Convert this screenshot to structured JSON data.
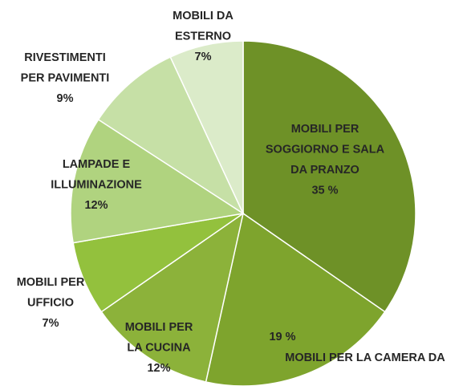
{
  "chart_data": {
    "type": "pie",
    "categories": [
      [
        "MOBILI PER",
        "SOGGIORNO E SALA",
        "DA PRANZO"
      ],
      [
        "MOBILI PER LA CAMERA DA"
      ],
      [
        "MOBILI PER",
        "LA CUCINA"
      ],
      [
        "MOBILI PER",
        "UFFICIO"
      ],
      [
        "LAMPADE E",
        "ILLUMINAZIONE"
      ],
      [
        "RIVESTIMENTI",
        "PER PAVIMENTI"
      ],
      [
        "MOBILI DA",
        "ESTERNO"
      ]
    ],
    "values": [
      35,
      19,
      12,
      7,
      12,
      9,
      7
    ],
    "value_labels": [
      "35 %",
      "19 %",
      "12%",
      "7%",
      "12%",
      "9%",
      "7%"
    ],
    "colors": [
      "#6e9127",
      "#7ea42d",
      "#8cb23a",
      "#93c13d",
      "#b0d37f",
      "#c6e0a6",
      "#dbebc9"
    ]
  }
}
